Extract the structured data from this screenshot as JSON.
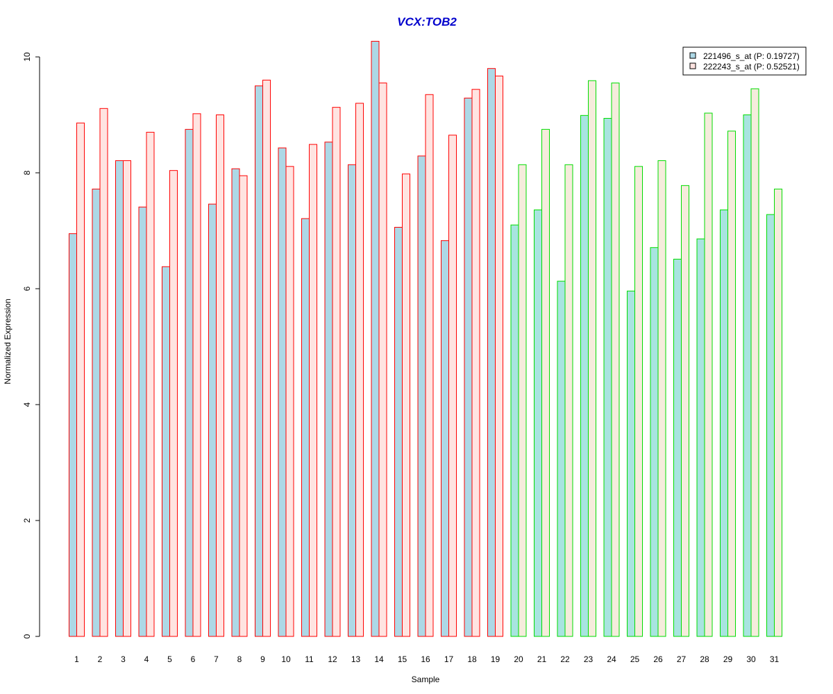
{
  "chart_data": {
    "type": "bar",
    "title": "VCX:TOB2",
    "xlabel": "Sample",
    "ylabel": "Normalized Expression",
    "ylim": [
      0,
      10.4
    ],
    "yticks": [
      0,
      2,
      4,
      6,
      8,
      10
    ],
    "grid": false,
    "legend_position": "top-right",
    "categories": [
      "1",
      "2",
      "3",
      "4",
      "5",
      "6",
      "7",
      "8",
      "9",
      "10",
      "11",
      "12",
      "13",
      "14",
      "15",
      "16",
      "17",
      "18",
      "19",
      "20",
      "21",
      "22",
      "23",
      "24",
      "25",
      "26",
      "27",
      "28",
      "29",
      "30",
      "31"
    ],
    "series": [
      {
        "name": "221496_s_at (P: 0.19727)",
        "values": [
          6.95,
          7.72,
          8.21,
          7.41,
          6.38,
          8.75,
          7.46,
          8.07,
          9.5,
          8.43,
          7.21,
          8.53,
          8.14,
          10.27,
          7.06,
          8.29,
          6.83,
          9.29,
          9.8,
          7.1,
          7.36,
          6.13,
          8.99,
          8.94,
          5.96,
          6.71,
          6.51,
          6.86,
          7.36,
          9.0,
          7.28
        ]
      },
      {
        "name": "222243_s_at (P: 0.52521)",
        "values": [
          8.86,
          9.11,
          8.21,
          8.7,
          8.04,
          9.02,
          9.0,
          7.95,
          9.6,
          8.11,
          8.49,
          9.13,
          9.2,
          9.55,
          7.98,
          9.35,
          8.65,
          9.44,
          9.67,
          8.14,
          8.75,
          8.14,
          9.59,
          9.55,
          8.11,
          8.21,
          7.78,
          9.03,
          8.72,
          9.45,
          7.72
        ]
      }
    ],
    "group_borders": {
      "samples_1_19": "#ff0000",
      "samples_20_31": "#00dd00"
    },
    "fill_colors": {
      "series1_group1": "#add8e6",
      "series2_group1": "#ffe4e1",
      "series1_group2": "#a8e4e0",
      "series2_group2": "#f5ecdc"
    },
    "title_color": "#0000cd"
  }
}
